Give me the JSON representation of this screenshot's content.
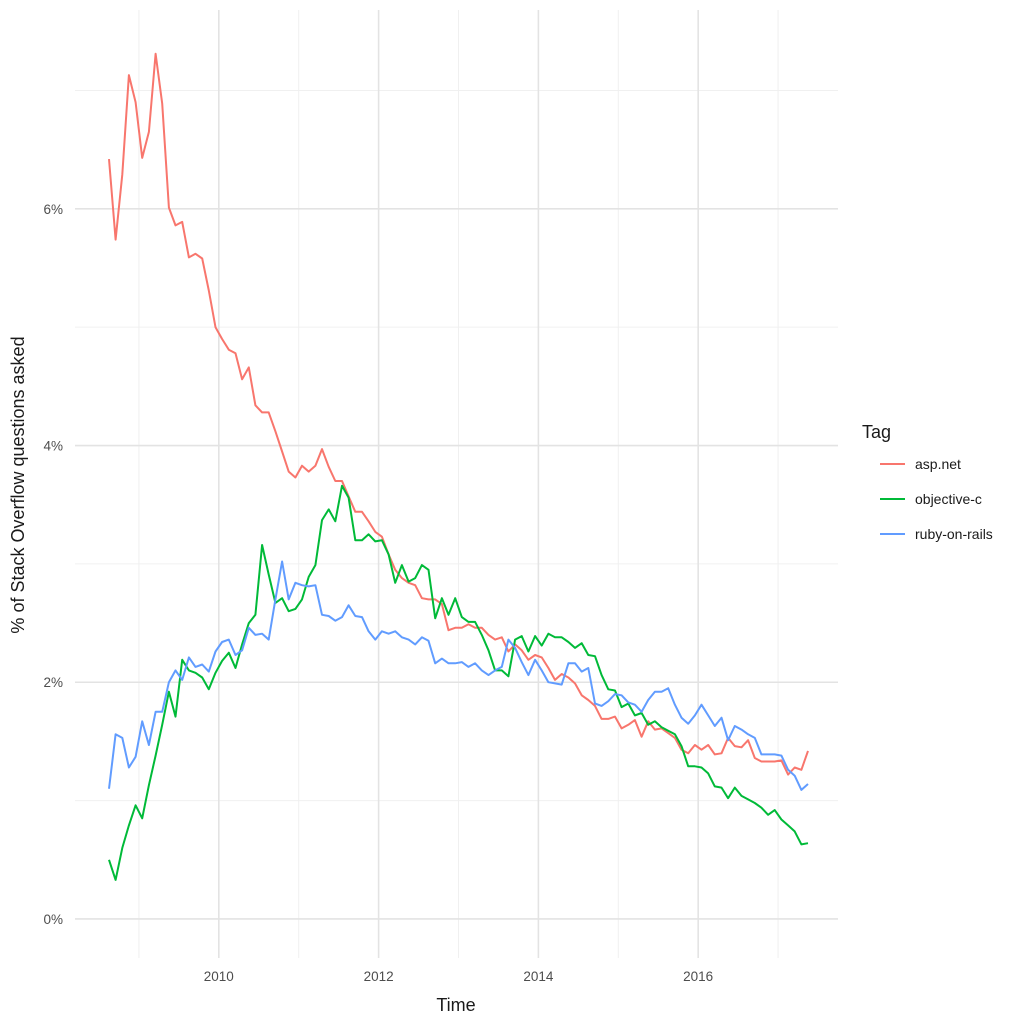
{
  "chart_data": {
    "type": "line",
    "title": "",
    "xlabel": "Time",
    "ylabel": "% of Stack Overflow questions asked",
    "xlim": [
      2008.2,
      2017.75
    ],
    "ylim": [
      -0.33,
      7.68
    ],
    "x_ticks": [
      "2010",
      "2012",
      "2014",
      "2016"
    ],
    "x_tick_values": [
      2010,
      2012,
      2014,
      2016
    ],
    "y_ticks": [
      "0%",
      "2%",
      "4%",
      "6%"
    ],
    "y_tick_values": [
      0,
      2,
      4,
      6
    ],
    "grid": true,
    "legend": {
      "title": "Tag",
      "position": "right"
    },
    "x": [
      "2008-08",
      "2008-09",
      "2008-10",
      "2008-11",
      "2008-12",
      "2009-01",
      "2009-02",
      "2009-03",
      "2009-04",
      "2009-05",
      "2009-06",
      "2009-07",
      "2009-08",
      "2009-09",
      "2009-10",
      "2009-11",
      "2009-12",
      "2010-01",
      "2010-02",
      "2010-03",
      "2010-04",
      "2010-05",
      "2010-06",
      "2010-07",
      "2010-08",
      "2010-09",
      "2010-10",
      "2010-11",
      "2010-12",
      "2011-01",
      "2011-02",
      "2011-03",
      "2011-04",
      "2011-05",
      "2011-06",
      "2011-07",
      "2011-08",
      "2011-09",
      "2011-10",
      "2011-11",
      "2011-12",
      "2012-01",
      "2012-02",
      "2012-03",
      "2012-04",
      "2012-05",
      "2012-06",
      "2012-07",
      "2012-08",
      "2012-09",
      "2012-10",
      "2012-11",
      "2012-12",
      "2013-01",
      "2013-02",
      "2013-03",
      "2013-04",
      "2013-05",
      "2013-06",
      "2013-07",
      "2013-08",
      "2013-09",
      "2013-10",
      "2013-11",
      "2013-12",
      "2014-01",
      "2014-02",
      "2014-03",
      "2014-04",
      "2014-05",
      "2014-06",
      "2014-07",
      "2014-08",
      "2014-09",
      "2014-10",
      "2014-11",
      "2014-12",
      "2015-01",
      "2015-02",
      "2015-03",
      "2015-04",
      "2015-05",
      "2015-06",
      "2015-07",
      "2015-08",
      "2015-09",
      "2015-10",
      "2015-11",
      "2015-12",
      "2016-01",
      "2016-02",
      "2016-03",
      "2016-04",
      "2016-05",
      "2016-06",
      "2016-07",
      "2016-08",
      "2016-09",
      "2016-10",
      "2016-11",
      "2016-12",
      "2017-01",
      "2017-02",
      "2017-03",
      "2017-04",
      "2017-05"
    ],
    "series": [
      {
        "name": "asp.net",
        "color": "#F8766D",
        "values": [
          6.42,
          5.74,
          6.29,
          7.13,
          6.9,
          6.43,
          6.65,
          7.31,
          6.89,
          6.01,
          5.86,
          5.89,
          5.59,
          5.62,
          5.58,
          5.31,
          5.0,
          4.9,
          4.81,
          4.78,
          4.56,
          4.66,
          4.34,
          4.28,
          4.28,
          4.12,
          3.95,
          3.78,
          3.73,
          3.83,
          3.78,
          3.83,
          3.97,
          3.82,
          3.7,
          3.7,
          3.57,
          3.44,
          3.44,
          3.36,
          3.27,
          3.23,
          3.08,
          2.95,
          2.88,
          2.84,
          2.82,
          2.71,
          2.7,
          2.7,
          2.66,
          2.44,
          2.46,
          2.46,
          2.49,
          2.46,
          2.46,
          2.4,
          2.36,
          2.38,
          2.26,
          2.32,
          2.27,
          2.19,
          2.23,
          2.21,
          2.12,
          2.02,
          2.07,
          2.04,
          1.99,
          1.89,
          1.85,
          1.8,
          1.69,
          1.69,
          1.71,
          1.61,
          1.64,
          1.68,
          1.54,
          1.67,
          1.6,
          1.61,
          1.57,
          1.53,
          1.43,
          1.4,
          1.47,
          1.43,
          1.47,
          1.39,
          1.4,
          1.53,
          1.46,
          1.45,
          1.51,
          1.36,
          1.33,
          1.33,
          1.33,
          1.34,
          1.22,
          1.28,
          1.26,
          1.42
        ]
      },
      {
        "name": "objective-c",
        "color": "#00BA38",
        "values": [
          0.5,
          0.33,
          0.6,
          0.79,
          0.96,
          0.85,
          1.13,
          1.38,
          1.64,
          1.92,
          1.71,
          2.19,
          2.1,
          2.08,
          2.04,
          1.94,
          2.08,
          2.18,
          2.25,
          2.12,
          2.32,
          2.5,
          2.57,
          3.16,
          2.91,
          2.67,
          2.71,
          2.6,
          2.62,
          2.7,
          2.89,
          2.99,
          3.37,
          3.46,
          3.36,
          3.66,
          3.56,
          3.2,
          3.2,
          3.25,
          3.19,
          3.2,
          3.08,
          2.84,
          2.99,
          2.85,
          2.88,
          2.99,
          2.95,
          2.54,
          2.71,
          2.57,
          2.71,
          2.55,
          2.51,
          2.51,
          2.4,
          2.27,
          2.1,
          2.1,
          2.05,
          2.36,
          2.39,
          2.26,
          2.39,
          2.31,
          2.41,
          2.38,
          2.38,
          2.34,
          2.29,
          2.33,
          2.23,
          2.22,
          2.06,
          1.94,
          1.93,
          1.79,
          1.82,
          1.72,
          1.74,
          1.64,
          1.67,
          1.62,
          1.59,
          1.56,
          1.46,
          1.29,
          1.29,
          1.28,
          1.23,
          1.12,
          1.11,
          1.02,
          1.11,
          1.04,
          1.01,
          0.98,
          0.94,
          0.88,
          0.92,
          0.84,
          0.79,
          0.74,
          0.63,
          0.64
        ]
      },
      {
        "name": "ruby-on-rails",
        "color": "#619CFF",
        "values": [
          1.1,
          1.56,
          1.53,
          1.28,
          1.37,
          1.67,
          1.47,
          1.75,
          1.75,
          2.0,
          2.1,
          2.02,
          2.21,
          2.13,
          2.15,
          2.09,
          2.26,
          2.34,
          2.36,
          2.23,
          2.27,
          2.46,
          2.4,
          2.41,
          2.36,
          2.7,
          3.02,
          2.7,
          2.84,
          2.82,
          2.81,
          2.82,
          2.57,
          2.56,
          2.52,
          2.55,
          2.65,
          2.56,
          2.55,
          2.43,
          2.36,
          2.43,
          2.41,
          2.43,
          2.38,
          2.36,
          2.32,
          2.38,
          2.35,
          2.16,
          2.2,
          2.16,
          2.16,
          2.17,
          2.13,
          2.16,
          2.1,
          2.06,
          2.1,
          2.13,
          2.36,
          2.29,
          2.17,
          2.06,
          2.19,
          2.1,
          2.0,
          1.99,
          1.98,
          2.16,
          2.16,
          2.09,
          2.12,
          1.82,
          1.8,
          1.84,
          1.9,
          1.89,
          1.83,
          1.81,
          1.75,
          1.85,
          1.92,
          1.92,
          1.95,
          1.81,
          1.7,
          1.65,
          1.72,
          1.81,
          1.72,
          1.63,
          1.7,
          1.51,
          1.63,
          1.6,
          1.56,
          1.53,
          1.39,
          1.39,
          1.39,
          1.38,
          1.26,
          1.21,
          1.09,
          1.14
        ]
      }
    ]
  }
}
